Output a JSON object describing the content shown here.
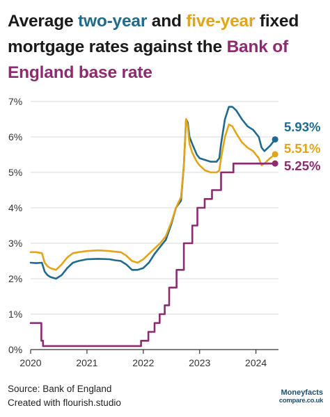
{
  "title": {
    "part1": "Average ",
    "two_year": "two-year",
    "part2": " and ",
    "five_year": "five-year",
    "part3": " fixed mortgage rates against the ",
    "base_rate": "Bank of England base rate"
  },
  "footer": {
    "source": "Source: Bank of England",
    "credit": "Created with flourish.studio"
  },
  "logo": {
    "line1": "Moneyfacts",
    "line2": "compare.co.uk"
  },
  "colors": {
    "two_year": "#1e6b8f",
    "five_year": "#e3a417",
    "base_rate": "#8c2b6e",
    "grid": "#d9d9d9",
    "axis": "#333333"
  },
  "chart_data": {
    "type": "line",
    "title": "Average two-year and five-year fixed mortgage rates against the Bank of England base rate",
    "x_ticks": [
      "2020",
      "2021",
      "2022",
      "2023",
      "2024"
    ],
    "y_ticks": [
      "0%",
      "1%",
      "2%",
      "3%",
      "4%",
      "5%",
      "6%",
      "7%"
    ],
    "xlim": [
      2020.0,
      2024.4
    ],
    "ylim": [
      0,
      7
    ],
    "grid": true,
    "end_labels": [
      "5.93%",
      "5.51%",
      "5.25%"
    ],
    "series": [
      {
        "name": "two-year",
        "color": "#1e6b8f",
        "x": [
          2020.0,
          2020.1,
          2020.2,
          2020.25,
          2020.3,
          2020.35,
          2020.45,
          2020.55,
          2020.65,
          2020.75,
          2020.85,
          2021.0,
          2021.2,
          2021.4,
          2021.5,
          2021.6,
          2021.7,
          2021.8,
          2021.9,
          2022.0,
          2022.1,
          2022.2,
          2022.3,
          2022.4,
          2022.5,
          2022.58,
          2022.67,
          2022.72,
          2022.76,
          2022.79,
          2022.82,
          2022.87,
          2022.95,
          2023.0,
          2023.1,
          2023.2,
          2023.3,
          2023.35,
          2023.38,
          2023.45,
          2023.52,
          2023.58,
          2023.65,
          2023.75,
          2023.85,
          2023.95,
          2024.05,
          2024.1,
          2024.15,
          2024.25,
          2024.34
        ],
        "values": [
          2.45,
          2.44,
          2.45,
          2.2,
          2.1,
          2.05,
          2.0,
          2.1,
          2.3,
          2.45,
          2.5,
          2.55,
          2.56,
          2.55,
          2.52,
          2.5,
          2.4,
          2.25,
          2.25,
          2.3,
          2.45,
          2.7,
          2.9,
          3.1,
          3.55,
          4.0,
          4.2,
          5.2,
          6.5,
          6.4,
          6.0,
          5.8,
          5.5,
          5.4,
          5.35,
          5.3,
          5.3,
          5.4,
          5.8,
          6.5,
          6.85,
          6.85,
          6.75,
          6.5,
          6.3,
          6.2,
          6.0,
          5.7,
          5.6,
          5.75,
          5.93
        ]
      },
      {
        "name": "five-year",
        "color": "#e3a417",
        "x": [
          2020.0,
          2020.1,
          2020.2,
          2020.25,
          2020.3,
          2020.35,
          2020.45,
          2020.55,
          2020.65,
          2020.75,
          2020.85,
          2021.0,
          2021.2,
          2021.4,
          2021.5,
          2021.6,
          2021.7,
          2021.8,
          2021.9,
          2022.0,
          2022.1,
          2022.2,
          2022.3,
          2022.4,
          2022.5,
          2022.58,
          2022.67,
          2022.72,
          2022.76,
          2022.79,
          2022.82,
          2022.87,
          2022.95,
          2023.0,
          2023.1,
          2023.2,
          2023.3,
          2023.35,
          2023.38,
          2023.45,
          2023.52,
          2023.58,
          2023.65,
          2023.75,
          2023.85,
          2023.95,
          2024.05,
          2024.1,
          2024.15,
          2024.25,
          2024.34
        ],
        "values": [
          2.75,
          2.75,
          2.72,
          2.45,
          2.35,
          2.3,
          2.25,
          2.4,
          2.6,
          2.72,
          2.75,
          2.78,
          2.8,
          2.78,
          2.76,
          2.75,
          2.65,
          2.5,
          2.45,
          2.55,
          2.7,
          2.85,
          3.0,
          3.2,
          3.6,
          4.0,
          4.3,
          5.2,
          6.5,
          6.3,
          5.8,
          5.55,
          5.3,
          5.2,
          5.05,
          5.0,
          5.0,
          5.05,
          5.4,
          6.0,
          6.35,
          6.3,
          6.1,
          5.85,
          5.7,
          5.6,
          5.4,
          5.2,
          5.25,
          5.4,
          5.51
        ]
      },
      {
        "name": "base rate",
        "color": "#8c2b6e",
        "step": true,
        "x": [
          2020.0,
          2020.19,
          2020.22,
          2021.96,
          2022.09,
          2022.2,
          2022.29,
          2022.38,
          2022.46,
          2022.59,
          2022.72,
          2022.87,
          2022.96,
          2023.09,
          2023.22,
          2023.38,
          2023.6,
          2024.34
        ],
        "values": [
          0.75,
          0.25,
          0.1,
          0.25,
          0.5,
          0.75,
          1.0,
          1.25,
          1.75,
          2.25,
          3.0,
          3.5,
          4.0,
          4.25,
          4.5,
          5.0,
          5.25,
          5.25
        ]
      }
    ]
  }
}
